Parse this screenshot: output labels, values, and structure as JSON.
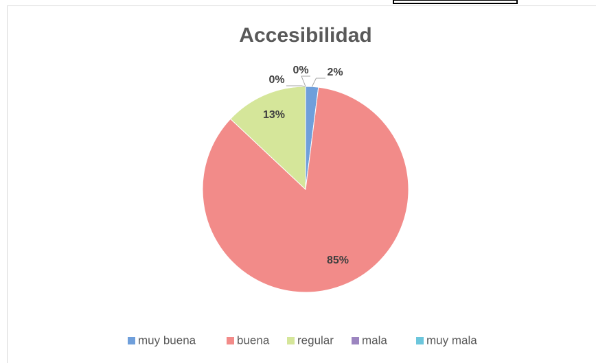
{
  "chart_data": {
    "type": "pie",
    "title": "Accesibilidad",
    "categories": [
      "muy buena",
      "buena",
      "regular",
      "mala",
      "muy mala"
    ],
    "values": [
      2,
      85,
      13,
      0,
      0
    ],
    "value_labels": [
      "2%",
      "85%",
      "13%",
      "0%",
      "0%"
    ],
    "colors": [
      "#6f9fdb",
      "#f28b89",
      "#d5e69a",
      "#9c85c0",
      "#6cc6dc"
    ],
    "legend": "bottom"
  }
}
